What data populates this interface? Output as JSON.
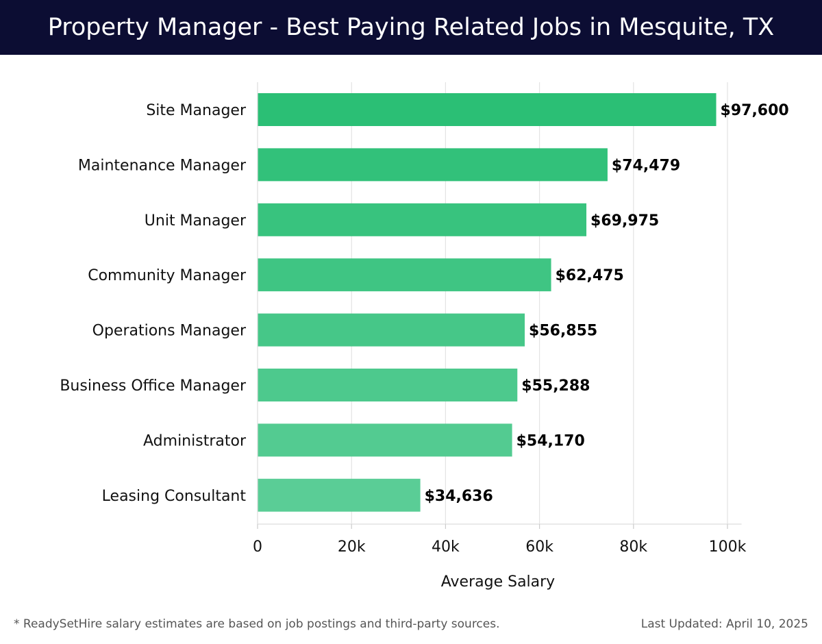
{
  "header": {
    "title": "Property Manager - Best Paying Related Jobs in Mesquite, TX"
  },
  "footer": {
    "note": "* ReadySetHire salary estimates are based on job postings and third-party sources.",
    "updated": "Last Updated: April 10, 2025"
  },
  "colors": {
    "header_bg": "#0c0d33",
    "bar_top": "#2bbf75",
    "bar_bottom": "#5acd96"
  },
  "chart_data": {
    "type": "bar",
    "orientation": "horizontal",
    "title": "Property Manager - Best Paying Related Jobs in Mesquite, TX",
    "xlabel": "Average Salary",
    "ylabel": "",
    "xlim": [
      0,
      103000
    ],
    "xticks": [
      0,
      20000,
      40000,
      60000,
      80000,
      100000
    ],
    "xtick_labels": [
      "0",
      "20k",
      "40k",
      "60k",
      "80k",
      "100k"
    ],
    "grid": true,
    "categories": [
      "Site Manager",
      "Maintenance Manager",
      "Unit Manager",
      "Community Manager",
      "Operations Manager",
      "Business Office Manager",
      "Administrator",
      "Leasing Consultant"
    ],
    "values": [
      97600,
      74479,
      69975,
      62475,
      56855,
      55288,
      54170,
      34636
    ],
    "value_labels": [
      "$97,600",
      "$74,479",
      "$69,975",
      "$62,475",
      "$56,855",
      "$55,288",
      "$54,170",
      "$34,636"
    ]
  }
}
